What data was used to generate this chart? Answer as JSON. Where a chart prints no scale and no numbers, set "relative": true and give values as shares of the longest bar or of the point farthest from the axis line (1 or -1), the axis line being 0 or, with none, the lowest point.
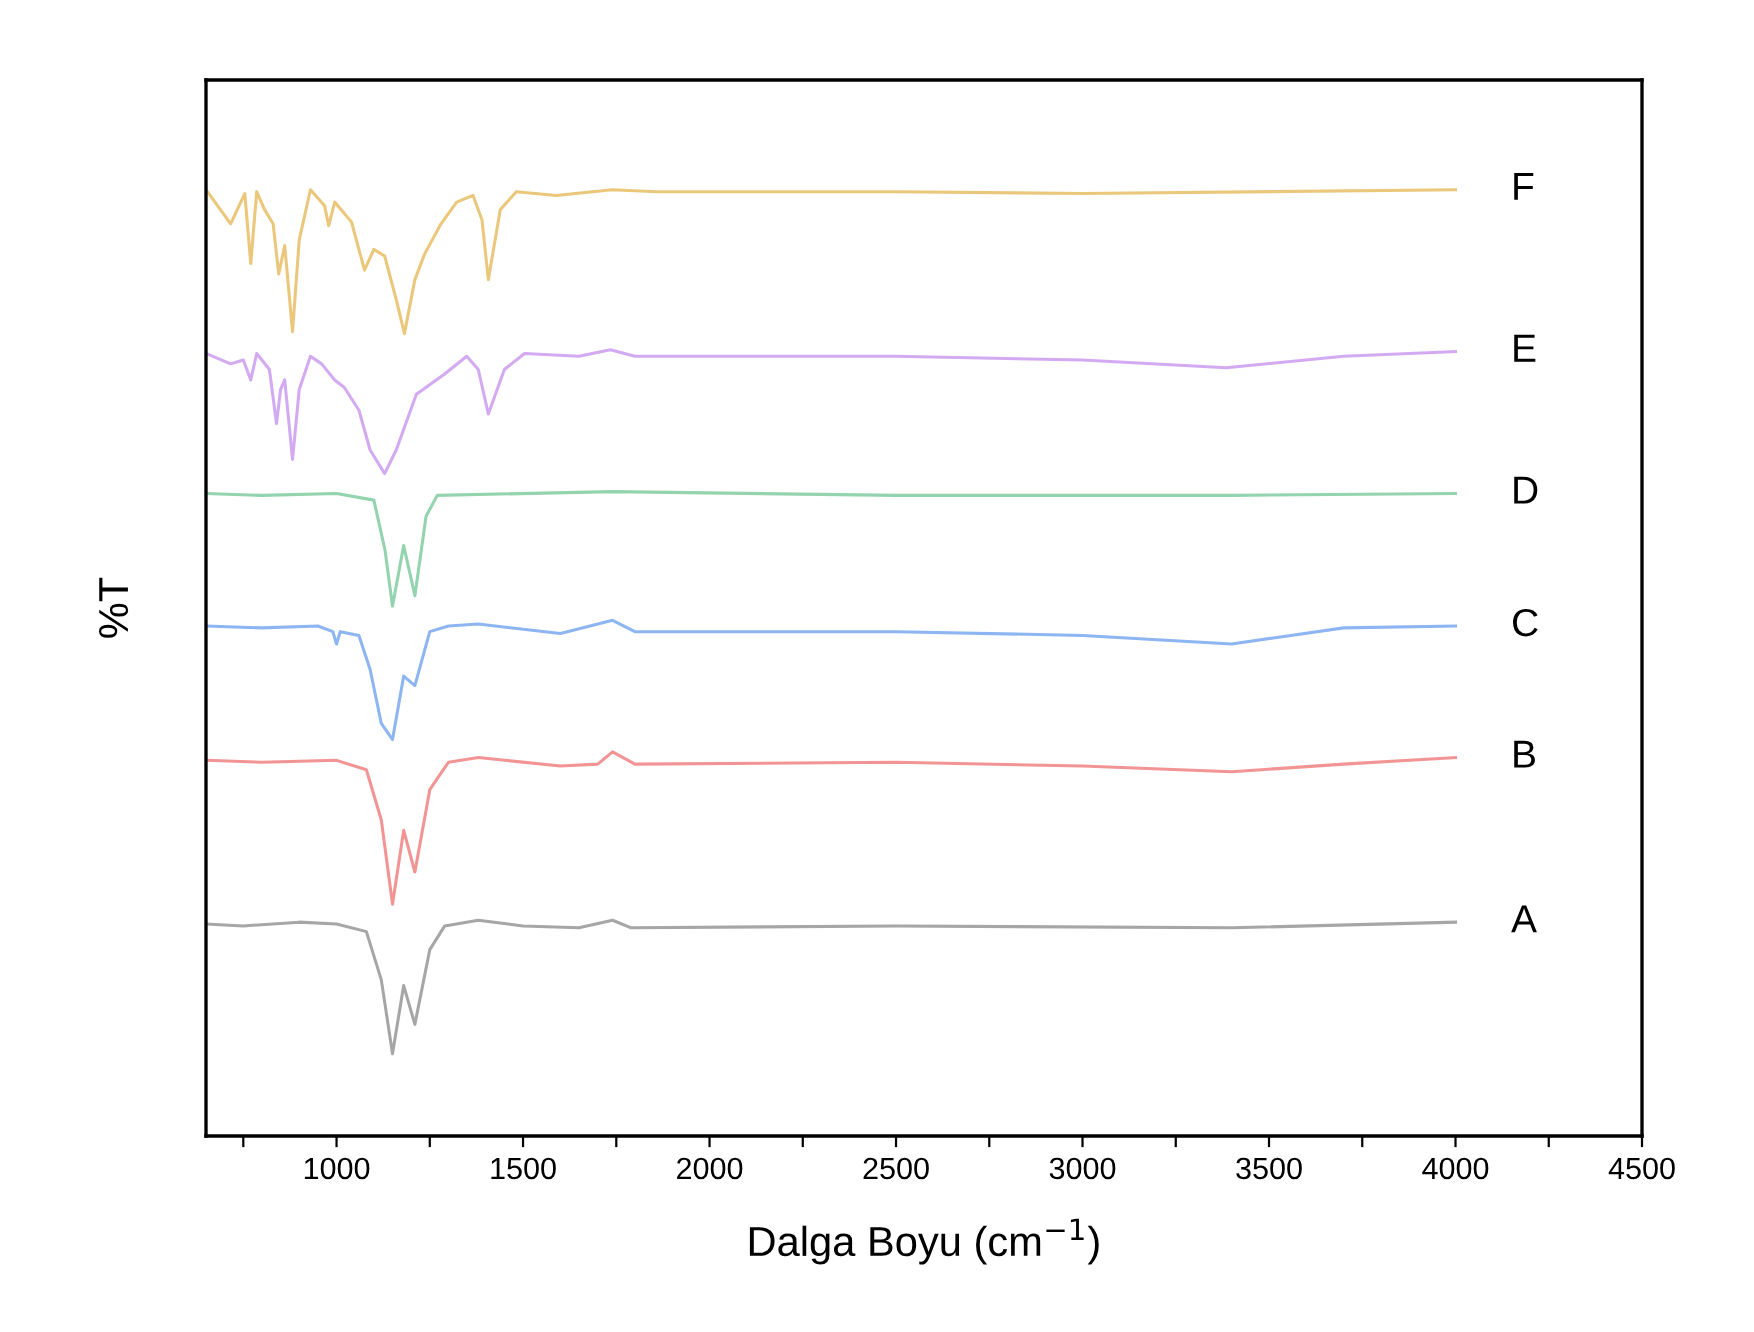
{
  "chart_data": {
    "type": "line",
    "relative": true,
    "xlabel": "Dalga Boyu (cm$^{−1}$)",
    "ylabel": "%T",
    "xlim": [
      650,
      4500
    ],
    "xticks": [
      {
        "value": 750,
        "label": null
      },
      1000,
      {
        "value": 1250,
        "label": null
      },
      1500,
      {
        "value": 1750,
        "label": null
      },
      2000,
      {
        "value": 2250,
        "label": null
      },
      2500,
      {
        "value": 2750,
        "label": null
      },
      3000,
      {
        "value": 3250,
        "label": null
      },
      3500,
      {
        "value": 3750,
        "label": null
      },
      4000,
      {
        "value": 4250,
        "label": null
      },
      4500
    ],
    "grid": false,
    "legend": false,
    "marker": "none",
    "line_style": "solid",
    "series": [
      {
        "name": "A",
        "color": "#a6a6a6",
        "x": [
          650,
          750,
          900,
          1000,
          1080,
          1120,
          1150,
          1180,
          1210,
          1250,
          1290,
          1380,
          1500,
          1650,
          1740,
          1790,
          2500,
          3400,
          4000
        ],
        "values": [
          0.224,
          0.222,
          0.226,
          0.224,
          0.216,
          0.165,
          0.087,
          0.159,
          0.118,
          0.197,
          0.222,
          0.228,
          0.222,
          0.22,
          0.228,
          0.22,
          0.222,
          0.22,
          0.226
        ]
      },
      {
        "name": "B",
        "color": "#f29494",
        "x": [
          650,
          800,
          1000,
          1080,
          1120,
          1150,
          1180,
          1210,
          1250,
          1300,
          1380,
          1600,
          1700,
          1740,
          1800,
          2500,
          3000,
          3400,
          3700,
          4000
        ],
        "values": [
          0.397,
          0.395,
          0.397,
          0.387,
          0.334,
          0.245,
          0.323,
          0.279,
          0.366,
          0.395,
          0.4,
          0.391,
          0.393,
          0.406,
          0.393,
          0.395,
          0.391,
          0.385,
          0.393,
          0.4
        ]
      },
      {
        "name": "C",
        "color": "#8db5f2",
        "x": [
          650,
          800,
          950,
          990,
          1000,
          1010,
          1060,
          1090,
          1120,
          1150,
          1180,
          1210,
          1250,
          1300,
          1380,
          1600,
          1740,
          1800,
          2500,
          3000,
          3400,
          3700,
          4000
        ],
        "values": [
          0.539,
          0.537,
          0.539,
          0.533,
          0.52,
          0.533,
          0.529,
          0.493,
          0.436,
          0.419,
          0.486,
          0.476,
          0.533,
          0.539,
          0.541,
          0.531,
          0.545,
          0.533,
          0.533,
          0.529,
          0.52,
          0.537,
          0.539
        ]
      },
      {
        "name": "D",
        "color": "#93d3ad",
        "x": [
          650,
          800,
          1000,
          1100,
          1130,
          1150,
          1180,
          1210,
          1240,
          1270,
          1740,
          2500,
          3400,
          4000
        ],
        "values": [
          0.679,
          0.677,
          0.679,
          0.672,
          0.619,
          0.56,
          0.624,
          0.571,
          0.655,
          0.677,
          0.681,
          0.677,
          0.677,
          0.679
        ]
      },
      {
        "name": "E",
        "color": "#d3aaf2",
        "x": [
          650,
          716,
          750,
          770,
          786,
          820,
          839,
          850,
          861,
          882,
          900,
          930,
          960,
          995,
          1021,
          1060,
          1090,
          1129,
          1160,
          1214,
          1289,
          1349,
          1380,
          1407,
          1450,
          1504,
          1650,
          1734,
          1800,
          2500,
          3000,
          3385,
          3700,
          4000
        ],
        "values": [
          0.827,
          0.816,
          0.82,
          0.799,
          0.827,
          0.81,
          0.753,
          0.789,
          0.799,
          0.715,
          0.789,
          0.824,
          0.816,
          0.799,
          0.791,
          0.767,
          0.725,
          0.7,
          0.725,
          0.784,
          0.805,
          0.824,
          0.81,
          0.763,
          0.81,
          0.827,
          0.824,
          0.831,
          0.824,
          0.824,
          0.82,
          0.812,
          0.824,
          0.829
        ]
      },
      {
        "name": "F",
        "color": "#ebc77c",
        "x": [
          650,
          716,
          754,
          770,
          786,
          807,
          830,
          845,
          861,
          882,
          900,
          930,
          968,
          979,
          995,
          1040,
          1075,
          1100,
          1129,
          1160,
          1182,
          1210,
          1236,
          1280,
          1322,
          1366,
          1390,
          1407,
          1439,
          1482,
          1589,
          1739,
          1858,
          2500,
          3000,
          4000
        ],
        "values": [
          1.0,
          0.964,
          0.996,
          0.922,
          0.998,
          0.979,
          0.964,
          0.911,
          0.941,
          0.85,
          0.947,
          1.0,
          0.983,
          0.962,
          0.987,
          0.966,
          0.915,
          0.937,
          0.93,
          0.884,
          0.848,
          0.905,
          0.932,
          0.964,
          0.987,
          0.994,
          0.968,
          0.905,
          0.979,
          0.998,
          0.994,
          1.0,
          0.998,
          0.998,
          0.996,
          1.0
        ]
      }
    ]
  }
}
